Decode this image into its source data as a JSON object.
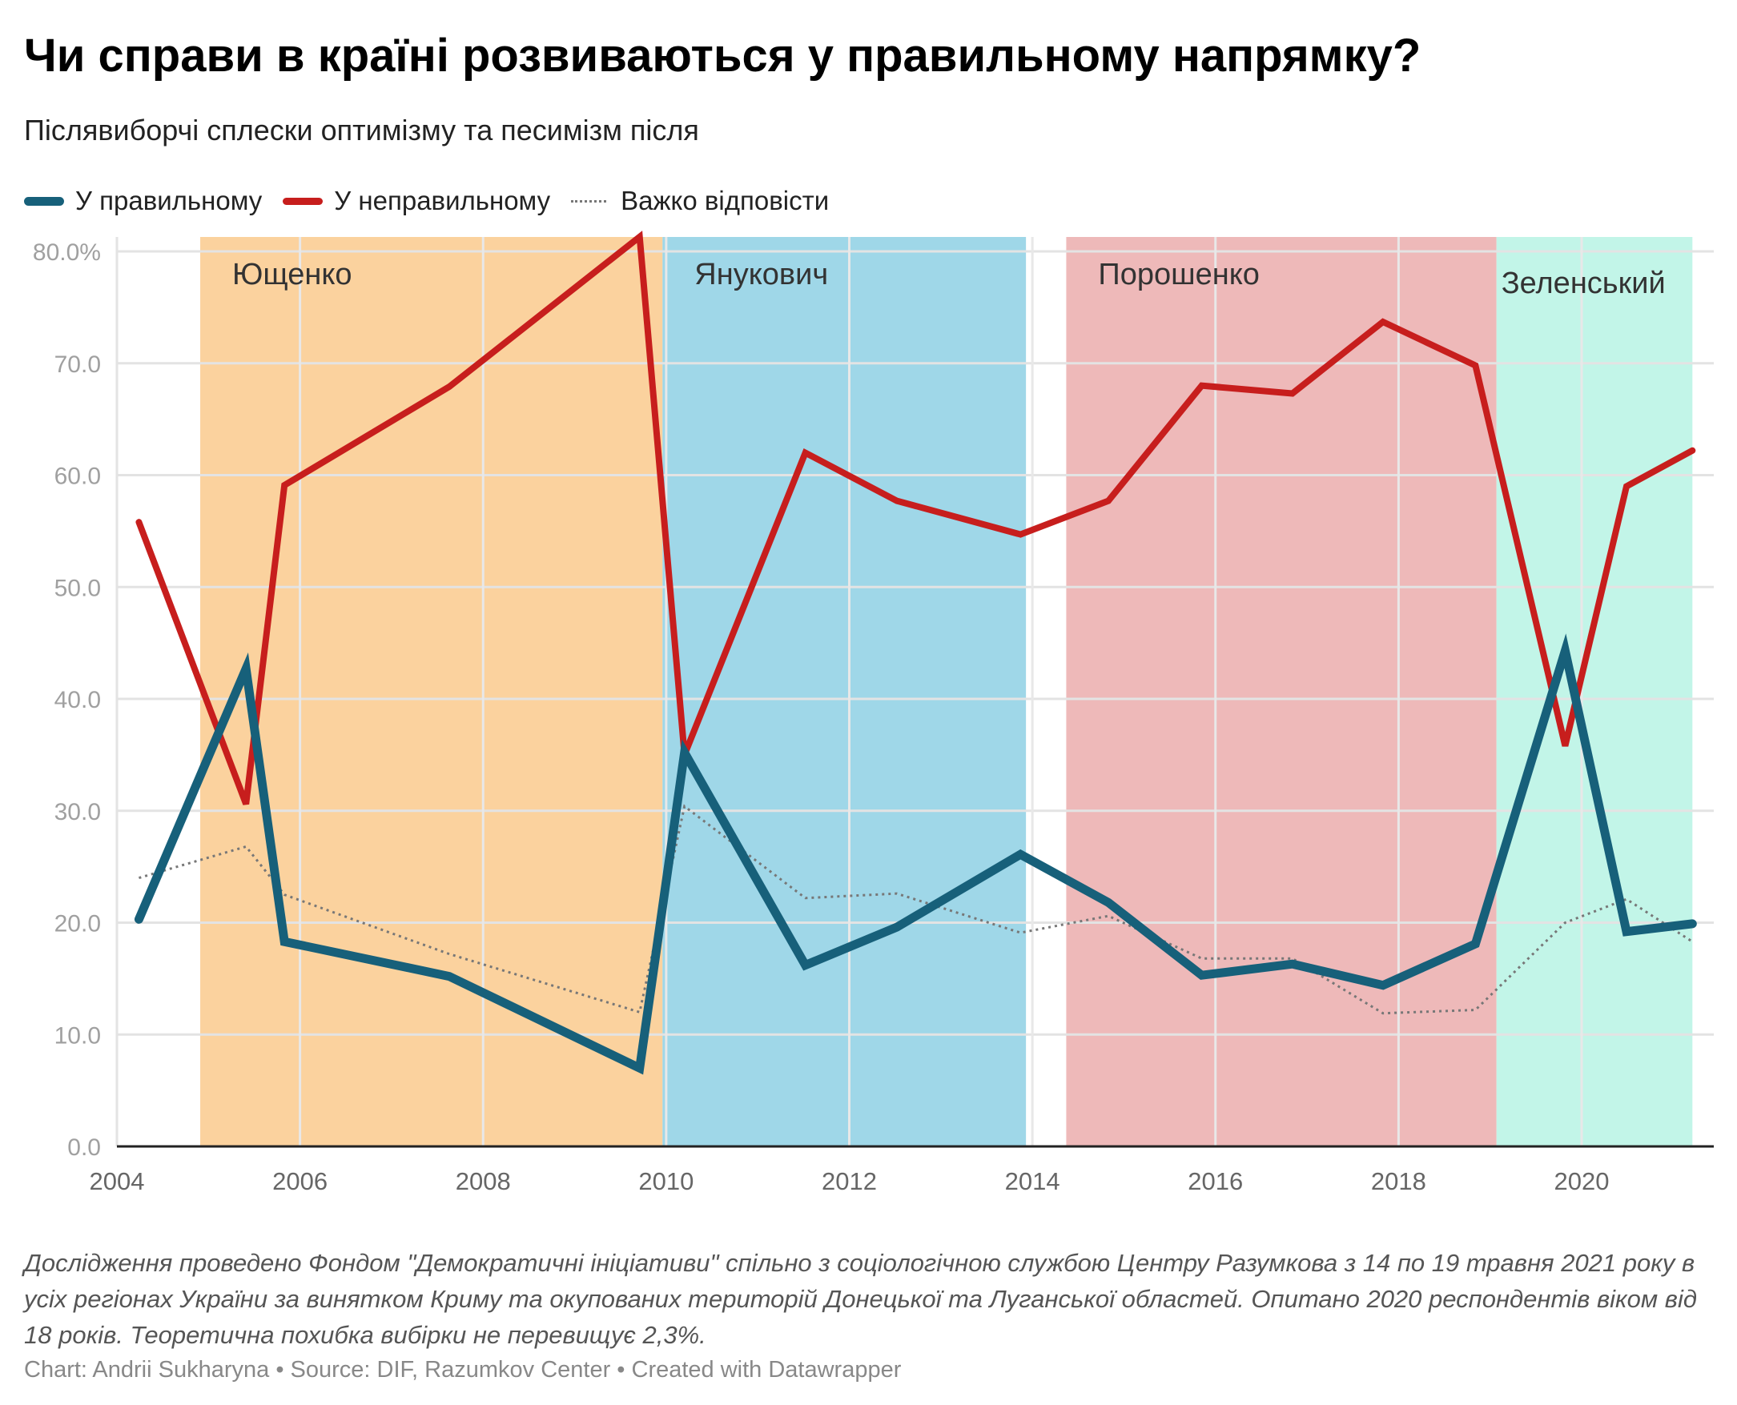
{
  "header": {
    "title": "Чи справи в країні розвиваються у правильному напрямку?",
    "subtitle": "Післявиборчі сплески оптимізму та песимізм після"
  },
  "legend": [
    {
      "label": "У правильному",
      "color": "#17607a",
      "style": "solid-thick"
    },
    {
      "label": "У неправильному",
      "color": "#c71e1d",
      "style": "solid"
    },
    {
      "label": "Важко відповісти",
      "color": "#777777",
      "style": "dotted"
    }
  ],
  "chart_data": {
    "type": "line",
    "title": "Чи справи в країні розвиваються у правильному напрямку?",
    "xlabel": "",
    "ylabel": "",
    "xlim": [
      2004,
      2021.5
    ],
    "ylim": [
      0,
      80
    ],
    "x_ticks": [
      2004,
      2006,
      2008,
      2010,
      2012,
      2014,
      2016,
      2018,
      2020
    ],
    "x_tick_labels": [
      "2004",
      "2006",
      "2008",
      "2010",
      "2012",
      "2014",
      "2016",
      "2018",
      "2020"
    ],
    "y_ticks": [
      0,
      10,
      20,
      30,
      40,
      50,
      60,
      70,
      80
    ],
    "y_tick_labels": [
      "0.0",
      "10.0",
      "20.0",
      "30.0",
      "40.0",
      "50.0",
      "60.0",
      "70.0",
      "80.0%"
    ],
    "grid": true,
    "legend_position": "top-left",
    "x": [
      2004.24,
      2005.41,
      2005.83,
      2007.63,
      2009.71,
      2010.2,
      2011.52,
      2012.52,
      2013.87,
      2014.83,
      2015.85,
      2016.84,
      2017.83,
      2018.84,
      2019.82,
      2020.49,
      2021.21
    ],
    "series": [
      {
        "name": "У правильному",
        "color": "#17607a",
        "values": [
          20.3,
          42.7,
          18.3,
          15.2,
          7.0,
          35.2,
          16.2,
          19.6,
          26.1,
          21.8,
          15.3,
          16.3,
          14.4,
          18.1,
          44.3,
          19.2,
          19.9
        ]
      },
      {
        "name": "У неправильному",
        "color": "#c71e1d",
        "values": [
          55.8,
          30.6,
          59.1,
          67.9,
          81.3,
          35.0,
          62.0,
          57.7,
          54.7,
          57.7,
          68.0,
          67.3,
          73.7,
          69.8,
          35.8,
          59.0,
          62.2
        ]
      },
      {
        "name": "Важко відповісти",
        "color": "#777777",
        "values": [
          24.0,
          26.8,
          22.5,
          17.2,
          12.0,
          30.4,
          22.2,
          22.6,
          19.1,
          20.6,
          16.8,
          16.8,
          11.9,
          12.2,
          20.0,
          22.1,
          18.3
        ]
      }
    ],
    "ranges": [
      {
        "label": "Ющенко",
        "from": 2004.91,
        "to": 2009.96,
        "color": "#fbd29e"
      },
      {
        "label": "Янукович",
        "from": 2009.96,
        "to": 2013.93,
        "color": "#9fd7e8"
      },
      {
        "label": "Порошенко",
        "from": 2014.37,
        "to": 2019.07,
        "color": "#eeb9b9"
      },
      {
        "label": "Зеленський",
        "from": 2019.07,
        "to": 2021.21,
        "color": "#c2f5e8"
      }
    ]
  },
  "notes": "Дослідження проведено Фондом \"Демократичні ініціативи\" спільно з соціологічною службою Центру Разумкова з 14 по 19 травня 2021 року в усіх регіонах України за винятком Криму та окупованих територій Донецької та Луганської областей. Опитано 2020 респондентів віком від 18 років. Теоретична похибка вибірки не перевищує 2,3%.",
  "byline": "Chart: Andrii Sukharyna • Source: DIF, Razumkov Center • Created with Datawrapper"
}
